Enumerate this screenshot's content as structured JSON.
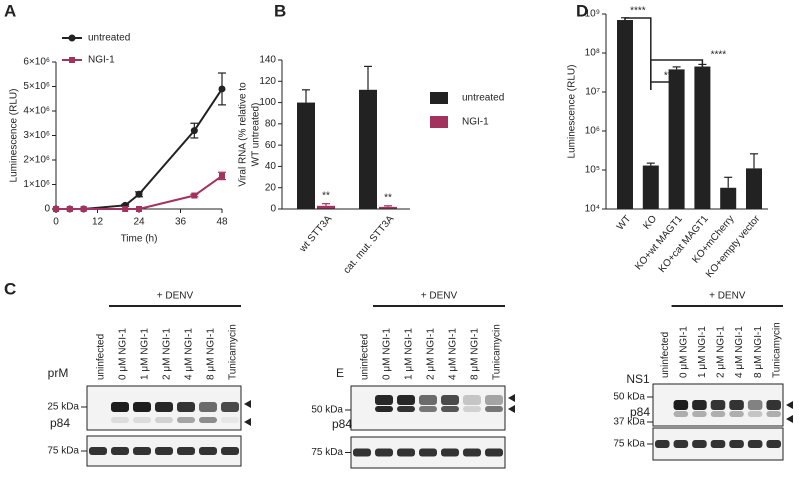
{
  "panel_labels": [
    "A",
    "B",
    "C",
    "D"
  ],
  "chart_data": [
    {
      "type": "line",
      "xlabel": "Time (h)",
      "ylabel": [
        "Luminescence (RLU)"
      ],
      "legend": "upper left",
      "x": [
        0,
        4,
        8,
        20,
        24,
        40,
        48
      ],
      "xlim": [
        0,
        48
      ],
      "xticks": [
        0,
        12,
        24,
        36,
        48
      ],
      "ylim": [
        0,
        6000000
      ],
      "yticks": [
        0,
        {
          "value": 1000000,
          "label": "1×10⁶"
        },
        {
          "value": 2000000,
          "label": "2×10⁶"
        },
        {
          "value": 3000000,
          "label": "3×10⁶"
        },
        {
          "value": 4000000,
          "label": "4×10⁶"
        },
        {
          "value": 5000000,
          "label": "5×10⁶"
        },
        {
          "value": 6000000,
          "label": "6×10⁶"
        }
      ],
      "series": [
        {
          "name": "untreated",
          "color": "#222222",
          "marker": "circle",
          "values": [
            0,
            0,
            0,
            150000,
            600000,
            3200000,
            4900000
          ],
          "errors": [
            0,
            0,
            0,
            40000,
            100000,
            300000,
            650000
          ]
        },
        {
          "name": "NGI-1",
          "color": "#a3325f",
          "marker": "square",
          "values": [
            0,
            0,
            0,
            0,
            0,
            550000,
            1350000
          ],
          "errors": [
            0,
            0,
            0,
            0,
            0,
            50000,
            150000
          ]
        }
      ]
    },
    {
      "type": "bar",
      "ylabel": [
        "Viral RNA (% relative to",
        "WT untreated)"
      ],
      "legend": "right",
      "categories": [
        "wt STT3A",
        "cat. mut. STT3A"
      ],
      "ylim": [
        0,
        140
      ],
      "yticks": [
        0,
        20,
        40,
        60,
        80,
        100,
        120,
        140
      ],
      "series": [
        {
          "name": "untreated",
          "color": "#222222",
          "values": [
            100,
            112
          ],
          "errors": [
            12,
            22
          ]
        },
        {
          "name": "NGI-1",
          "color": "#a3325f",
          "values": [
            3,
            2
          ],
          "errors": [
            2,
            1
          ]
        }
      ],
      "annotations": [
        "**",
        "**"
      ]
    },
    {
      "type": "bar",
      "ylabel": [
        "Luminescence (RLU)"
      ],
      "log_scale": true,
      "categories": [
        "WT",
        "KO",
        "KO+wt MAGT1",
        "KO+cat MAGT1",
        "KO+mCherry",
        "KO+empty vector"
      ],
      "color": "#222222",
      "values": [
        700000000,
        130000,
        38000000,
        45000000,
        35000,
        110000
      ],
      "errors": [
        100000000,
        20000,
        6000000,
        6000000,
        30000,
        150000
      ],
      "ylim": [
        10000,
        1000000000
      ],
      "yticks": [
        {
          "value": 10000,
          "label": "10⁴"
        },
        {
          "value": 100000,
          "label": "10⁵"
        },
        {
          "value": 1000000,
          "label": "10⁶"
        },
        {
          "value": 10000000,
          "label": "10⁷"
        },
        {
          "value": 100000000,
          "label": "10⁸"
        },
        {
          "value": 1000000000,
          "label": "10⁹"
        }
      ],
      "annotations": [
        "****",
        "***",
        "****"
      ]
    }
  ],
  "blots": {
    "treatment_label": "+ DENV",
    "lanes": [
      "uninfected",
      "0 μM NGI-1",
      "1 μM NGI-1",
      "2 μM NGI-1",
      "4 μM NGI-1",
      "8 μM NGI-1",
      "Tunicamycin"
    ],
    "panels": [
      {
        "protein": "prM",
        "markers": [
          "25 kDa"
        ],
        "loading": "p84",
        "loading_marker": "75 kDa"
      },
      {
        "protein": "E",
        "markers": [
          "50 kDa"
        ],
        "loading": "p84",
        "loading_marker": "75 kDa"
      },
      {
        "protein": "NS1",
        "markers": [
          "50 kDa",
          "37 kDa"
        ],
        "loading": "p84",
        "loading_marker": "75 kDa"
      }
    ]
  }
}
